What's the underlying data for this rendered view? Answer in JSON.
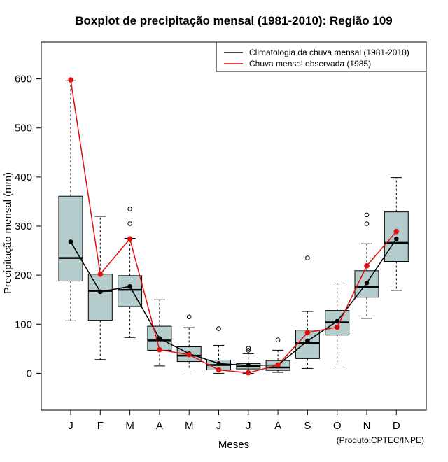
{
  "chart_data": {
    "type": "boxplot",
    "title": "Boxplot de precipitação mensal (1981-2010): Região 109",
    "xlabel": "Meses",
    "ylabel": "Precipitação mensal (mm)",
    "ylim": [
      -75,
      675
    ],
    "yticks": [
      0,
      100,
      200,
      300,
      400,
      500,
      600
    ],
    "categories": [
      "J",
      "F",
      "M",
      "A",
      "M",
      "J",
      "J",
      "A",
      "S",
      "O",
      "N",
      "D"
    ],
    "boxes": [
      {
        "whisker_low": 107,
        "q1": 188,
        "median": 235,
        "q3": 361,
        "whisker_high": 597,
        "outliers": []
      },
      {
        "whisker_low": 28,
        "q1": 108,
        "median": 168,
        "q3": 202,
        "whisker_high": 320,
        "outliers": []
      },
      {
        "whisker_low": 73,
        "q1": 136,
        "median": 170,
        "q3": 199,
        "whisker_high": 275,
        "outliers": [
          305,
          335
        ]
      },
      {
        "whisker_low": 15,
        "q1": 47,
        "median": 67,
        "q3": 96,
        "whisker_high": 150,
        "outliers": []
      },
      {
        "whisker_low": 7,
        "q1": 24,
        "median": 36,
        "q3": 54,
        "whisker_high": 93,
        "outliers": [
          115
        ]
      },
      {
        "whisker_low": 0,
        "q1": 7,
        "median": 17,
        "q3": 27,
        "whisker_high": 57,
        "outliers": [
          91
        ]
      },
      {
        "whisker_low": 0,
        "q1": 9,
        "median": 14,
        "q3": 20,
        "whisker_high": 40,
        "outliers": [
          47,
          51
        ]
      },
      {
        "whisker_low": 2,
        "q1": 6,
        "median": 12,
        "q3": 26,
        "whisker_high": 47,
        "outliers": [
          68
        ]
      },
      {
        "whisker_low": 10,
        "q1": 30,
        "median": 62,
        "q3": 88,
        "whisker_high": 126,
        "outliers": [
          235
        ]
      },
      {
        "whisker_low": 17,
        "q1": 78,
        "median": 104,
        "q3": 128,
        "whisker_high": 188,
        "outliers": []
      },
      {
        "whisker_low": 112,
        "q1": 155,
        "median": 176,
        "q3": 209,
        "whisker_high": 264,
        "outliers": [
          305,
          323
        ]
      },
      {
        "whisker_low": 169,
        "q1": 228,
        "median": 266,
        "q3": 329,
        "whisker_high": 399,
        "outliers": []
      }
    ],
    "series": [
      {
        "name": "Climatologia da chuva mensal (1981-2010)",
        "color": "#000000",
        "values": [
          268,
          166,
          177,
          71,
          40,
          20,
          16,
          17,
          66,
          106,
          184,
          274
        ]
      },
      {
        "name": "Chuva mensal observada (1985)",
        "color": "#e01010",
        "values": [
          598,
          202,
          274,
          48,
          38,
          7,
          1,
          17,
          83,
          94,
          219,
          289
        ]
      }
    ],
    "legend_position": "top-right",
    "box_fill": "#b4cccc",
    "footnote": "(Produto:CPTEC/INPE)"
  }
}
